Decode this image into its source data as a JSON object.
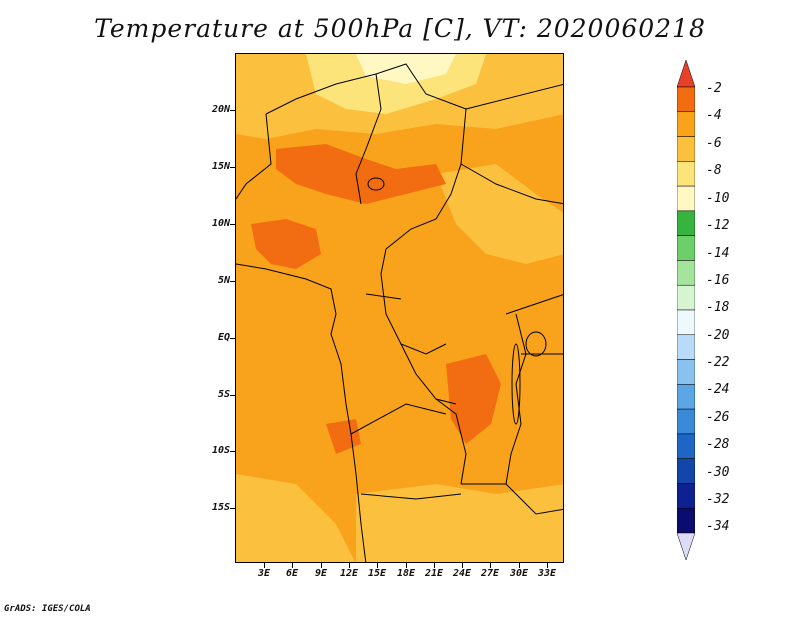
{
  "title": "Temperature at 500hPa [C], VT: 2020060218",
  "footer": "GrADS: IGES/COLA",
  "map": {
    "lat_labels": [
      "20N",
      "15N",
      "10N",
      "5N",
      "EQ",
      "5S",
      "10S",
      "15S"
    ],
    "lon_labels": [
      "3E",
      "6E",
      "9E",
      "12E",
      "15E",
      "18E",
      "21E",
      "24E",
      "27E",
      "30E",
      "33E"
    ]
  },
  "colorbar": {
    "labels": [
      "-2",
      "-4",
      "-6",
      "-8",
      "-10",
      "-12",
      "-14",
      "-16",
      "-18",
      "-20",
      "-22",
      "-24",
      "-26",
      "-28",
      "-30",
      "-32",
      "-34"
    ],
    "colors": [
      "#e8412a",
      "#f26d12",
      "#f9a21b",
      "#fbc13e",
      "#fde47a",
      "#fff8c2",
      "#37b43f",
      "#6ccf6a",
      "#a5e49d",
      "#d6f4cf",
      "#eef9fe",
      "#b9dbf7",
      "#8ac2ef",
      "#5ba7e6",
      "#3a8ad9",
      "#1f65c4",
      "#1446a8",
      "#0d2290",
      "#0a0c70",
      "#dcdcf8"
    ]
  }
}
